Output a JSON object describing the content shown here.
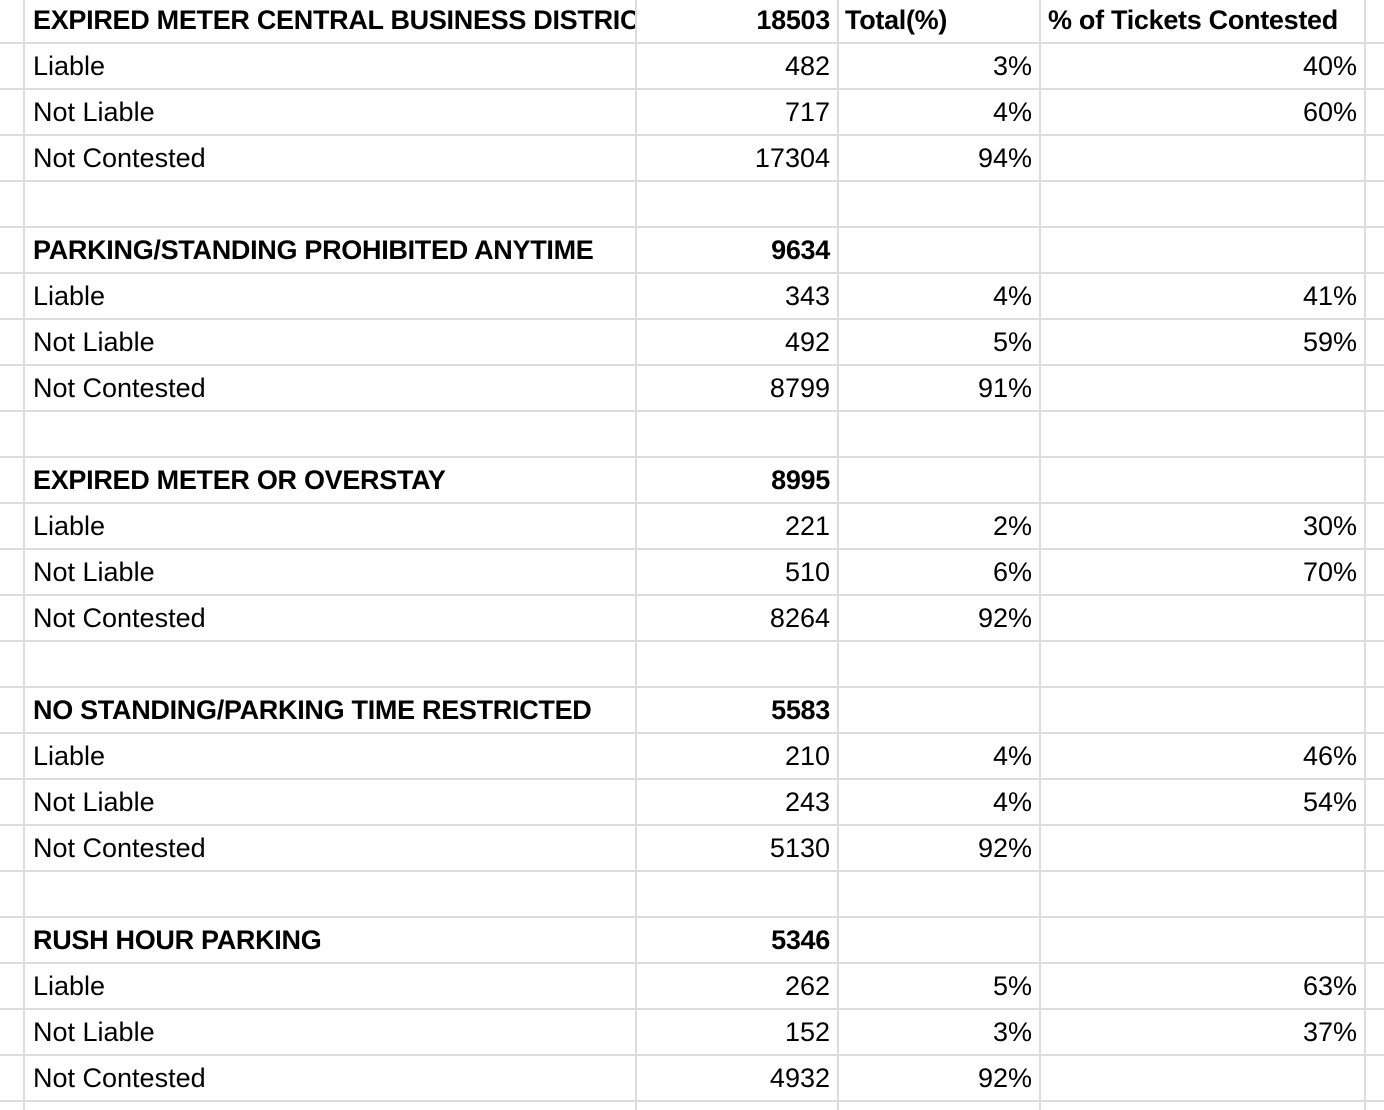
{
  "sheet": {
    "header": {
      "count_label": "",
      "total_header": "Total(%)",
      "contested_header": "% of Tickets Contested"
    },
    "sections": [
      {
        "title": "EXPIRED METER CENTRAL BUSINESS DISTRICT",
        "total": "18503",
        "total_header": "Total(%)",
        "contested_header": "% of Tickets Contested",
        "rows": [
          {
            "label": "Liable",
            "count": "482",
            "total_pct": "3%",
            "contested_pct": "40%"
          },
          {
            "label": "Not Liable",
            "count": "717",
            "total_pct": "4%",
            "contested_pct": "60%"
          },
          {
            "label": "Not Contested",
            "count": "17304",
            "total_pct": "94%",
            "contested_pct": ""
          }
        ]
      },
      {
        "title": "PARKING/STANDING PROHIBITED ANYTIME",
        "total": "9634",
        "total_header": "",
        "contested_header": "",
        "rows": [
          {
            "label": "Liable",
            "count": "343",
            "total_pct": "4%",
            "contested_pct": "41%"
          },
          {
            "label": "Not Liable",
            "count": "492",
            "total_pct": "5%",
            "contested_pct": "59%"
          },
          {
            "label": "Not Contested",
            "count": "8799",
            "total_pct": "91%",
            "contested_pct": ""
          }
        ]
      },
      {
        "title": "EXPIRED METER OR OVERSTAY",
        "total": "8995",
        "total_header": "",
        "contested_header": "",
        "rows": [
          {
            "label": "Liable",
            "count": "221",
            "total_pct": "2%",
            "contested_pct": "30%"
          },
          {
            "label": "Not Liable",
            "count": "510",
            "total_pct": "6%",
            "contested_pct": "70%"
          },
          {
            "label": "Not Contested",
            "count": "8264",
            "total_pct": "92%",
            "contested_pct": ""
          }
        ]
      },
      {
        "title": "NO STANDING/PARKING TIME RESTRICTED",
        "total": "5583",
        "total_header": "",
        "contested_header": "",
        "rows": [
          {
            "label": "Liable",
            "count": "210",
            "total_pct": "4%",
            "contested_pct": "46%"
          },
          {
            "label": "Not Liable",
            "count": "243",
            "total_pct": "4%",
            "contested_pct": "54%"
          },
          {
            "label": "Not Contested",
            "count": "5130",
            "total_pct": "92%",
            "contested_pct": ""
          }
        ]
      },
      {
        "title": "RUSH HOUR PARKING",
        "total": "5346",
        "total_header": "",
        "contested_header": "",
        "rows": [
          {
            "label": "Liable",
            "count": "262",
            "total_pct": "5%",
            "contested_pct": "63%"
          },
          {
            "label": "Not Liable",
            "count": "152",
            "total_pct": "3%",
            "contested_pct": "37%"
          },
          {
            "label": "Not Contested",
            "count": "4932",
            "total_pct": "92%",
            "contested_pct": ""
          }
        ]
      }
    ]
  }
}
